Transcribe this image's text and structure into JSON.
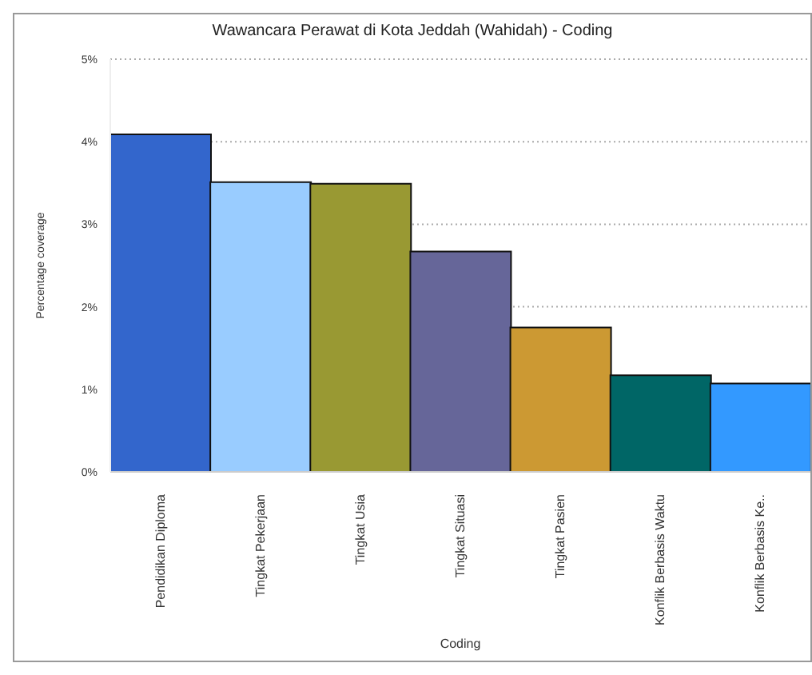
{
  "chart_data": {
    "type": "bar",
    "title": "Wawancara Perawat di Kota Jeddah (Wahidah) - Coding",
    "xlabel": "Coding",
    "ylabel": "Percentage coverage",
    "categories": [
      "Pendidikan Diploma",
      "Tingkat Pekerjaan",
      "Tingkat Usia",
      "Tingkat Situasi",
      "Tingkat Pasien",
      "Konflik Berbasis Waktu",
      "Konflik Berbasis Ke.."
    ],
    "values": [
      4.09,
      3.51,
      3.49,
      2.67,
      1.75,
      1.17,
      1.07
    ],
    "colors": [
      "#3366cc",
      "#99ccff",
      "#999933",
      "#666699",
      "#cc9933",
      "#006666",
      "#3399ff"
    ],
    "ylim": [
      0,
      5
    ],
    "yticks": [
      {
        "value": 0,
        "label": "0%"
      },
      {
        "value": 1,
        "label": "1%"
      },
      {
        "value": 2,
        "label": "2%"
      },
      {
        "value": 3,
        "label": "3%"
      },
      {
        "value": 4,
        "label": "4%"
      },
      {
        "value": 5,
        "label": "5%"
      }
    ],
    "grid": "y",
    "legend": false
  }
}
